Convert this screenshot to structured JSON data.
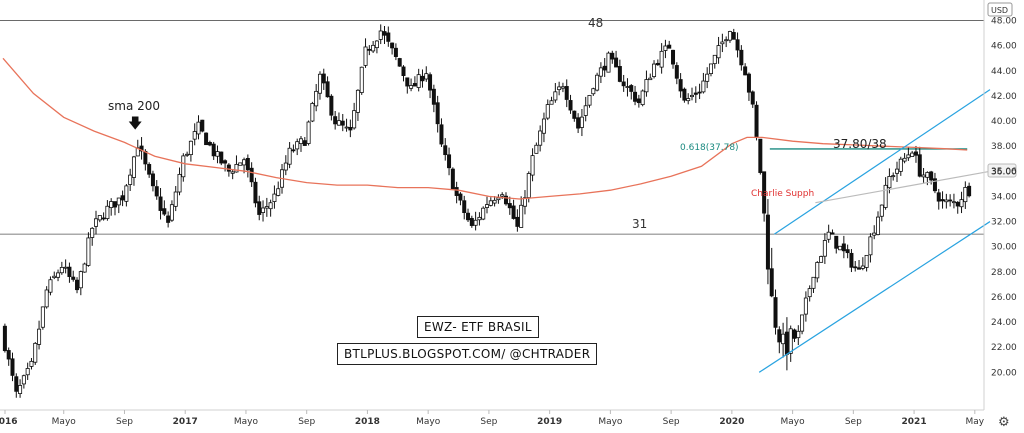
{
  "chart_data": {
    "type": "candlestick",
    "currency_label": "USD",
    "ylim": [
      17,
      49
    ],
    "y_ticks": [
      20,
      22,
      24,
      26,
      28,
      30,
      32,
      34,
      36,
      38,
      40,
      42,
      44,
      46,
      48
    ],
    "y_last_price": "35.06",
    "x_ticks": [
      {
        "label": "2016",
        "t": 0
      },
      {
        "label": "Mayo",
        "t": 4
      },
      {
        "label": "Sep",
        "t": 8
      },
      {
        "label": "2017",
        "t": 12
      },
      {
        "label": "Mayo",
        "t": 16
      },
      {
        "label": "Sep",
        "t": 20
      },
      {
        "label": "2018",
        "t": 24
      },
      {
        "label": "Mayo",
        "t": 28
      },
      {
        "label": "Sep",
        "t": 32
      },
      {
        "label": "2019",
        "t": 36
      },
      {
        "label": "Mayo",
        "t": 40
      },
      {
        "label": "Sep",
        "t": 44
      },
      {
        "label": "2020",
        "t": 48
      },
      {
        "label": "Mayo",
        "t": 52
      },
      {
        "label": "Sep",
        "t": 56
      },
      {
        "label": "2021",
        "t": 60
      },
      {
        "label": "May",
        "t": 64
      }
    ],
    "price_anchors": [
      [
        0,
        23.5
      ],
      [
        1,
        18.2
      ],
      [
        2,
        20.5
      ],
      [
        3,
        26.5
      ],
      [
        4,
        28.5
      ],
      [
        5,
        26.5
      ],
      [
        6,
        31.5
      ],
      [
        7,
        33
      ],
      [
        8,
        34
      ],
      [
        9,
        38.2
      ],
      [
        10,
        34.5
      ],
      [
        11,
        31.8
      ],
      [
        12,
        37
      ],
      [
        13,
        39.5
      ],
      [
        14,
        37.5
      ],
      [
        15,
        36
      ],
      [
        16,
        37
      ],
      [
        17,
        32.5
      ],
      [
        18,
        34
      ],
      [
        19,
        37.5
      ],
      [
        20,
        38.5
      ],
      [
        21,
        43.5
      ],
      [
        22,
        40
      ],
      [
        23,
        39
      ],
      [
        24,
        45.5
      ],
      [
        25,
        47.2
      ],
      [
        26,
        45
      ],
      [
        27,
        42.5
      ],
      [
        28,
        44
      ],
      [
        29,
        38
      ],
      [
        30,
        34
      ],
      [
        31,
        31.5
      ],
      [
        32,
        33.5
      ],
      [
        33,
        34.5
      ],
      [
        34,
        31.5
      ],
      [
        35,
        37
      ],
      [
        36,
        41
      ],
      [
        37,
        43
      ],
      [
        38,
        39.5
      ],
      [
        39,
        43
      ],
      [
        40,
        45
      ],
      [
        41,
        43
      ],
      [
        42,
        41.5
      ],
      [
        43,
        44.5
      ],
      [
        44,
        46
      ],
      [
        45,
        41.5
      ],
      [
        46,
        42.5
      ],
      [
        47,
        45
      ],
      [
        48,
        47.5
      ],
      [
        49,
        44
      ],
      [
        49.5,
        41
      ],
      [
        50,
        36
      ],
      [
        50.8,
        25
      ],
      [
        51.5,
        22
      ],
      [
        52.5,
        23
      ],
      [
        53.5,
        28
      ],
      [
        54.5,
        31
      ],
      [
        55.5,
        29.5
      ],
      [
        56.5,
        28
      ],
      [
        57.5,
        31.5
      ],
      [
        58.5,
        35.5
      ],
      [
        59.5,
        37
      ],
      [
        60,
        37.8
      ],
      [
        60.5,
        36
      ],
      [
        61,
        35.5
      ],
      [
        62,
        33.5
      ],
      [
        63,
        33.5
      ],
      [
        63.5,
        34.5
      ]
    ],
    "series": [
      {
        "name": "sma 200",
        "color": "#e8735a",
        "points": [
          [
            0,
            45
          ],
          [
            2,
            42.2
          ],
          [
            4,
            40.3
          ],
          [
            6,
            39.2
          ],
          [
            8,
            38.3
          ],
          [
            10,
            37.2
          ],
          [
            12,
            36.6
          ],
          [
            14,
            36.3
          ],
          [
            16,
            36
          ],
          [
            18,
            35.5
          ],
          [
            20,
            35.1
          ],
          [
            22,
            34.9
          ],
          [
            24,
            34.9
          ],
          [
            26,
            34.7
          ],
          [
            28,
            34.7
          ],
          [
            30,
            34.5
          ],
          [
            32,
            34
          ],
          [
            34,
            33.8
          ],
          [
            36,
            34
          ],
          [
            38,
            34.2
          ],
          [
            40,
            34.5
          ],
          [
            42,
            35
          ],
          [
            44,
            35.6
          ],
          [
            46,
            36.4
          ],
          [
            48,
            38.2
          ],
          [
            49,
            38.7
          ],
          [
            50,
            38.7
          ],
          [
            52,
            38.4
          ],
          [
            54,
            38.2
          ],
          [
            56,
            38.1
          ],
          [
            58,
            38
          ],
          [
            60,
            37.9
          ],
          [
            62,
            37.8
          ],
          [
            63.5,
            37.7
          ]
        ]
      }
    ],
    "horizontal_levels": [
      {
        "y": 48,
        "label": "48",
        "color": "#555555"
      },
      {
        "y": 31,
        "label": "31",
        "color": "#555555"
      },
      {
        "y": 37.78,
        "label": "0.618(37.78)",
        "color": "#1a8a80"
      }
    ],
    "trend_lines": [
      {
        "color": "#29a3e0",
        "from": [
          49.8,
          20
        ],
        "to": [
          65,
          32
        ]
      },
      {
        "color": "#29a3e0",
        "from": [
          50.8,
          31
        ],
        "to": [
          65,
          42.5
        ]
      },
      {
        "color": "#bbbbbb",
        "from": [
          53.5,
          33.5
        ],
        "to": [
          65,
          36
        ]
      }
    ],
    "annotations": {
      "sma_label": "sma 200",
      "level_48": "48",
      "level_31": "31",
      "fib_label": "0.618(37.78)",
      "resistance_label": "37.80/38",
      "charlie_label": "Charlie Supph"
    },
    "title": "EWZ- ETF BRASIL",
    "subtitle": "BTLPLUS.BLOGSPOT.COM/ @CHTRADER",
    "colors": {
      "candle": "#111111",
      "sma": "#e8735a",
      "channel": "#29a3e0",
      "fib": "#1a8a80",
      "charlie": "#e03030"
    }
  }
}
